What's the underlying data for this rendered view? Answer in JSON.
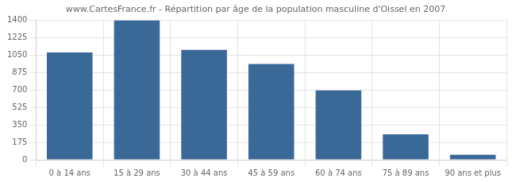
{
  "chart_data": {
    "type": "bar",
    "title": "www.CartesFrance.fr - Répartition par âge de la population masculine d'Oissel en 2007",
    "categories": [
      "0 à 14 ans",
      "15 à 29 ans",
      "30 à 44 ans",
      "45 à 59 ans",
      "60 à 74 ans",
      "75 à 89 ans",
      "90 ans et plus"
    ],
    "values": [
      1075,
      1395,
      1100,
      960,
      695,
      255,
      50
    ],
    "color": "#3a6897",
    "ylim": [
      0,
      1400
    ],
    "yticks": [
      0,
      175,
      350,
      525,
      700,
      875,
      1050,
      1225,
      1400
    ],
    "grid": true
  }
}
